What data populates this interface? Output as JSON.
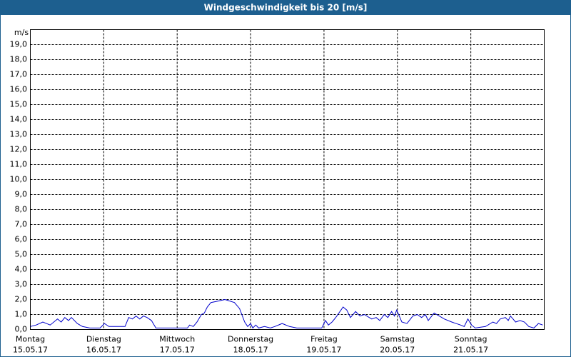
{
  "chart_data": {
    "type": "line",
    "title": "Windgeschwindigkeit bis 20 [m/s]",
    "y_unit": "m/s",
    "xlim": [
      0,
      7
    ],
    "xticks": [
      {
        "value": 0,
        "label": [
          "Montag",
          "15.05.17"
        ]
      },
      {
        "value": 1,
        "label": [
          "Dienstag",
          "16.05.17"
        ]
      },
      {
        "value": 2,
        "label": [
          "Mittwoch",
          "17.05.17"
        ]
      },
      {
        "value": 3,
        "label": [
          "Donnerstag",
          "18.05.17"
        ]
      },
      {
        "value": 4,
        "label": [
          "Freitag",
          "19.05.17"
        ]
      },
      {
        "value": 5,
        "label": [
          "Samstag",
          "20.05.17"
        ]
      },
      {
        "value": 6,
        "label": [
          "Sonntag",
          "21.05.17"
        ]
      }
    ],
    "ylim": [
      0,
      20
    ],
    "yticks": [
      {
        "value": 0,
        "label": "0,0"
      },
      {
        "value": 1,
        "label": "1,0"
      },
      {
        "value": 2,
        "label": "2,0"
      },
      {
        "value": 3,
        "label": "3,0"
      },
      {
        "value": 4,
        "label": "4,0"
      },
      {
        "value": 5,
        "label": "5,0"
      },
      {
        "value": 6,
        "label": "6,0"
      },
      {
        "value": 7,
        "label": "7,0"
      },
      {
        "value": 8,
        "label": "8,0"
      },
      {
        "value": 9,
        "label": "9,0"
      },
      {
        "value": 10,
        "label": "10,0"
      },
      {
        "value": 11,
        "label": "11,0"
      },
      {
        "value": 12,
        "label": "12,0"
      },
      {
        "value": 13,
        "label": "13,0"
      },
      {
        "value": 14,
        "label": "14,0"
      },
      {
        "value": 15,
        "label": "15,0"
      },
      {
        "value": 16,
        "label": "16,0"
      },
      {
        "value": 17,
        "label": "17,0"
      },
      {
        "value": 18,
        "label": "18,0"
      },
      {
        "value": 19,
        "label": "19,0"
      }
    ],
    "grid": true,
    "series": [
      {
        "color": "#0000cc",
        "x": [
          0,
          0.08,
          0.17,
          0.27,
          0.37,
          0.42,
          0.47,
          0.52,
          0.56,
          0.64,
          0.71,
          0.81,
          0.95,
          1.01,
          1.07,
          1.29,
          1.34,
          1.39,
          1.44,
          1.49,
          1.54,
          1.59,
          1.65,
          1.71,
          2.14,
          2.17,
          2.22,
          2.27,
          2.33,
          2.37,
          2.41,
          2.46,
          2.56,
          2.65,
          2.78,
          2.85,
          2.92,
          2.96,
          3.0,
          3.03,
          3.07,
          3.11,
          3.19,
          3.27,
          3.33,
          3.43,
          3.53,
          3.63,
          3.97,
          4.02,
          4.06,
          4.11,
          4.16,
          4.26,
          4.31,
          4.36,
          4.43,
          4.49,
          4.55,
          4.65,
          4.71,
          4.76,
          4.82,
          4.87,
          4.92,
          4.96,
          4.99,
          5.06,
          5.13,
          5.21,
          5.27,
          5.33,
          5.38,
          5.42,
          5.5,
          5.57,
          5.64,
          5.74,
          5.86,
          5.91,
          5.96,
          6.01,
          6.06,
          6.2,
          6.3,
          6.35,
          6.4,
          6.47,
          6.51,
          6.54,
          6.61,
          6.67,
          6.73,
          6.79,
          6.86,
          6.92,
          6.98
        ],
        "values": [
          0.2,
          0.3,
          0.5,
          0.3,
          0.7,
          0.5,
          0.8,
          0.6,
          0.8,
          0.4,
          0.2,
          0.1,
          0.1,
          0.4,
          0.2,
          0.2,
          0.8,
          0.7,
          0.9,
          0.7,
          0.9,
          0.8,
          0.6,
          0.1,
          0.1,
          0.3,
          0.2,
          0.5,
          1.0,
          1.1,
          1.5,
          1.8,
          1.9,
          2.0,
          1.8,
          1.4,
          0.5,
          0.2,
          0.4,
          0.1,
          0.3,
          0.1,
          0.2,
          0.1,
          0.2,
          0.4,
          0.2,
          0.1,
          0.1,
          0.6,
          0.3,
          0.5,
          0.8,
          1.5,
          1.3,
          0.8,
          1.2,
          0.9,
          1.0,
          0.7,
          0.8,
          0.6,
          1.0,
          0.8,
          1.2,
          0.9,
          1.3,
          0.5,
          0.4,
          0.9,
          1.0,
          0.8,
          1.0,
          0.6,
          1.1,
          0.9,
          0.7,
          0.5,
          0.3,
          0.2,
          0.7,
          0.3,
          0.1,
          0.2,
          0.5,
          0.4,
          0.7,
          0.8,
          0.6,
          0.9,
          0.5,
          0.6,
          0.5,
          0.2,
          0.1,
          0.4,
          0.3
        ]
      }
    ]
  }
}
